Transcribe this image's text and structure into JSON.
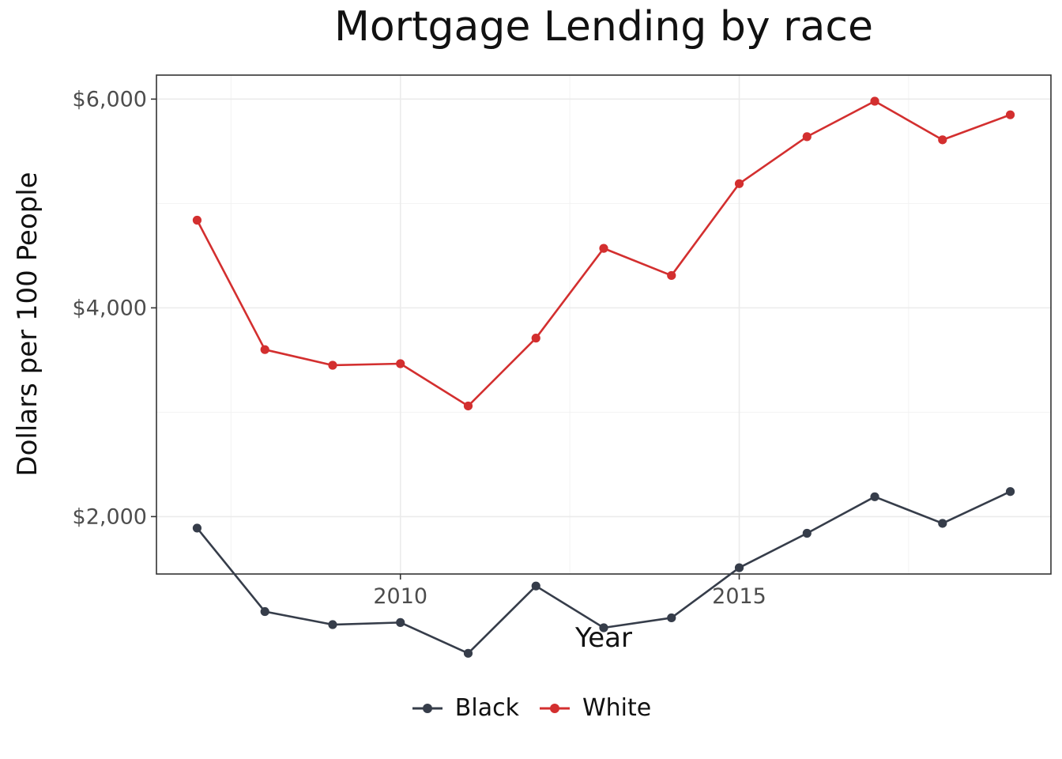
{
  "chart_data": {
    "type": "line",
    "title": "Mortgage Lending by race",
    "xlabel": "Year",
    "ylabel": "Dollars per 100 People",
    "x": [
      2007,
      2008,
      2009,
      2010,
      2011,
      2012,
      2013,
      2014,
      2015,
      2016,
      2017,
      2018,
      2019
    ],
    "xlim": [
      2006.4,
      2019.6
    ],
    "ylim": [
      1450,
      6230
    ],
    "x_ticks": [
      2010,
      2015
    ],
    "x_tick_labels": [
      "2010",
      "2015"
    ],
    "y_ticks": [
      2000,
      4000,
      6000
    ],
    "y_tick_labels": [
      "$2,000",
      "$4,000",
      "$6,000"
    ],
    "grid": true,
    "legend_position": "bottom",
    "series": [
      {
        "name": "Black",
        "color": "#363d4a",
        "values": [
          1890,
          1090,
          965,
          985,
          690,
          1335,
          935,
          1030,
          1510,
          1840,
          2190,
          1935,
          2240
        ]
      },
      {
        "name": "White",
        "color": "#d32f2f",
        "values": [
          4840,
          3600,
          3450,
          3465,
          3060,
          3710,
          4570,
          4310,
          5190,
          5640,
          5980,
          5610,
          5850
        ]
      }
    ]
  }
}
